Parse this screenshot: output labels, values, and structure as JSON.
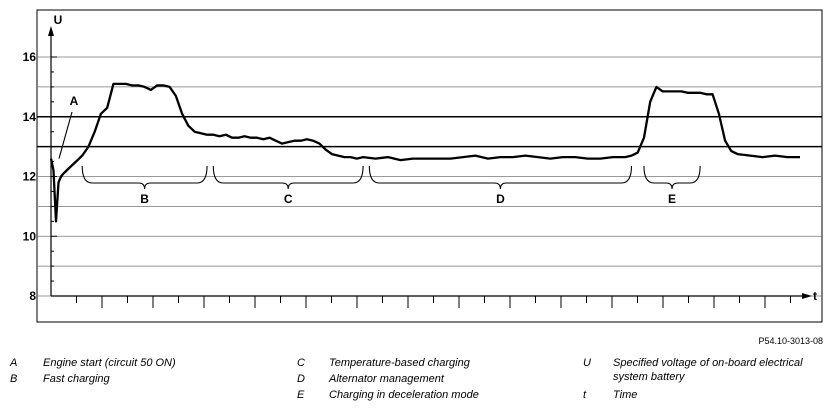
{
  "chart_data": {
    "type": "line",
    "ylabel": "U",
    "xlabel": "t",
    "ylim": [
      8,
      16
    ],
    "y_ticks": [
      "8",
      "10",
      "12",
      "14",
      "16"
    ],
    "grid": "horizontal",
    "series": [
      {
        "x": [
          0,
          0.4,
          0.8,
          1.2,
          1.6,
          2,
          3,
          4,
          5,
          6,
          7,
          8,
          9,
          10,
          11,
          12,
          13,
          14,
          15,
          16,
          17,
          18,
          19,
          20,
          21,
          22,
          23,
          24,
          25,
          26,
          27,
          28,
          29,
          30,
          31,
          32,
          33,
          34,
          35,
          36,
          37,
          38,
          39,
          40,
          41,
          42,
          43,
          44,
          45,
          46,
          47,
          48,
          49,
          50,
          52,
          54,
          56,
          58,
          60,
          62,
          64,
          66,
          68,
          70,
          72,
          74,
          76,
          78,
          80,
          82,
          84,
          86,
          88,
          90,
          92,
          93,
          94,
          95,
          96,
          97,
          98,
          99,
          100,
          101,
          102,
          103,
          104,
          105,
          106,
          107,
          108,
          109,
          110,
          112,
          114,
          116,
          118,
          120
        ],
        "values": [
          12.6,
          12.2,
          10.5,
          11.8,
          12.0,
          12.1,
          12.3,
          12.5,
          12.7,
          13.0,
          13.5,
          14.1,
          14.3,
          15.1,
          15.1,
          15.1,
          15.05,
          15.05,
          15.0,
          14.9,
          15.05,
          15.05,
          15.0,
          14.7,
          14.1,
          13.7,
          13.5,
          13.45,
          13.4,
          13.4,
          13.35,
          13.4,
          13.3,
          13.3,
          13.35,
          13.3,
          13.3,
          13.25,
          13.3,
          13.2,
          13.1,
          13.15,
          13.2,
          13.2,
          13.25,
          13.2,
          13.1,
          12.9,
          12.75,
          12.7,
          12.65,
          12.65,
          12.6,
          12.65,
          12.6,
          12.65,
          12.55,
          12.6,
          12.6,
          12.6,
          12.6,
          12.65,
          12.7,
          12.6,
          12.65,
          12.65,
          12.7,
          12.65,
          12.6,
          12.65,
          12.65,
          12.6,
          12.6,
          12.65,
          12.65,
          12.7,
          12.8,
          13.3,
          14.5,
          15.0,
          14.85,
          14.85,
          14.85,
          14.85,
          14.8,
          14.8,
          14.8,
          14.75,
          14.75,
          14.1,
          13.2,
          12.85,
          12.75,
          12.7,
          12.65,
          12.7,
          12.65,
          12.65
        ]
      }
    ],
    "brackets": [
      {
        "label": "B",
        "x_start": 5,
        "x_end": 25
      },
      {
        "label": "C",
        "x_start": 26,
        "x_end": 50
      },
      {
        "label": "D",
        "x_start": 51,
        "x_end": 93
      },
      {
        "label": "E",
        "x_start": 95,
        "x_end": 104
      }
    ],
    "annotations": [
      {
        "label": "A",
        "x": 0.8
      }
    ],
    "reference_lines": [
      13,
      14
    ]
  },
  "figure_code": "P54.10-3013-08",
  "legend": [
    {
      "key": "A",
      "text": "Engine start (circuit 50 ON)"
    },
    {
      "key": "B",
      "text": "Fast charging"
    },
    {
      "key": "C",
      "text": "Temperature-based charging"
    },
    {
      "key": "D",
      "text": "Alternator management"
    },
    {
      "key": "E",
      "text": "Charging in deceleration mode"
    },
    {
      "key": "U",
      "text": "Specified voltage of on-board electrical system battery"
    },
    {
      "key": "t",
      "text": "Time"
    }
  ]
}
